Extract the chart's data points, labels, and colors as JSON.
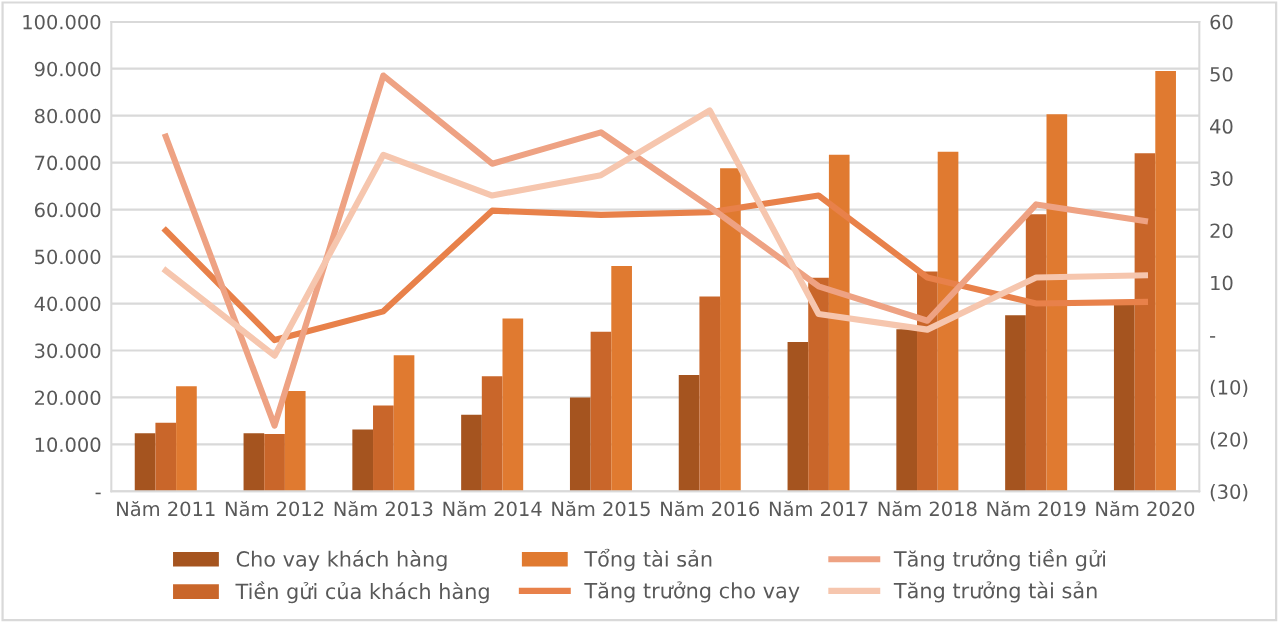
{
  "chart_data": {
    "type": "bar",
    "categories": [
      "Năm 2011",
      "Năm 2012",
      "Năm 2013",
      "Năm 2014",
      "Năm 2015",
      "Năm 2016",
      "Năm 2017",
      "Năm 2018",
      "Năm 2019",
      "Năm 2020"
    ],
    "series": [
      {
        "name": "Cho vay khách hàng",
        "color": "#a5541f",
        "values": [
          12400,
          12400,
          13200,
          16300,
          20000,
          24800,
          31800,
          34500,
          37500,
          40000
        ]
      },
      {
        "name": "Tiền gửi của khách hàng",
        "color": "#c9662a",
        "values": [
          14600,
          12200,
          18300,
          24500,
          34000,
          41500,
          45500,
          46800,
          59000,
          72000
        ]
      },
      {
        "name": "Tổng tài sản",
        "color": "#e07a30",
        "values": [
          22400,
          21400,
          29000,
          36800,
          48000,
          68800,
          71700,
          72300,
          80300,
          89500
        ]
      },
      {
        "name": "Tăng trưởng cho vay",
        "type": "line",
        "axis": "y2",
        "color": "#e8814a",
        "values": [
          20,
          -1,
          4.5,
          23.8,
          23,
          23.5,
          26.7,
          11,
          6,
          6.3
        ]
      },
      {
        "name": "Tăng trưởng tiền gửi",
        "type": "line",
        "axis": "y2",
        "color": "#eea283",
        "values": [
          38,
          -17.4,
          49.7,
          32.8,
          38.8,
          24.5,
          9.3,
          2.7,
          25,
          21.8
        ]
      },
      {
        "name": "Tăng trưởng tài sản",
        "type": "line",
        "axis": "y2",
        "color": "#f6c6ae",
        "values": [
          12.3,
          -4,
          34.5,
          26.7,
          30.6,
          43,
          4,
          1,
          11,
          11.4
        ]
      }
    ],
    "ylim": [
      0,
      100000
    ],
    "yticks": [
      {
        "value": 0,
        "label": "-"
      },
      {
        "value": 10000,
        "label": "10.000"
      },
      {
        "value": 20000,
        "label": "20.000"
      },
      {
        "value": 30000,
        "label": "30.000"
      },
      {
        "value": 40000,
        "label": "40.000"
      },
      {
        "value": 50000,
        "label": "50.000"
      },
      {
        "value": 60000,
        "label": "60.000"
      },
      {
        "value": 70000,
        "label": "70.000"
      },
      {
        "value": 80000,
        "label": "80.000"
      },
      {
        "value": 90000,
        "label": "90.000"
      },
      {
        "value": 100000,
        "label": "100.000"
      }
    ],
    "y2lim": [
      -30,
      60
    ],
    "y2ticks": [
      {
        "value": -30,
        "label": "(30)"
      },
      {
        "value": -20,
        "label": "(20)"
      },
      {
        "value": -10,
        "label": "(10)"
      },
      {
        "value": 0,
        "label": "-"
      },
      10,
      20,
      30,
      40,
      50,
      60
    ],
    "grid": "y",
    "legend": "bottom",
    "marker": "none",
    "line_style": "solid"
  }
}
